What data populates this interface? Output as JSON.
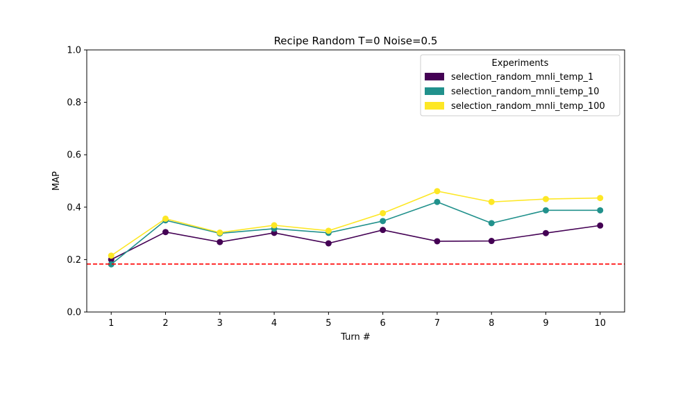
{
  "chart_data": {
    "type": "line",
    "title": "Recipe Random T=0 Noise=0.5",
    "xlabel": "Turn #",
    "ylabel": "MAP",
    "x": [
      1,
      2,
      3,
      4,
      5,
      6,
      7,
      8,
      9,
      10
    ],
    "xticks": [
      "1",
      "2",
      "3",
      "4",
      "5",
      "6",
      "7",
      "8",
      "9",
      "10"
    ],
    "yticks": [
      "0.0",
      "0.2",
      "0.4",
      "0.6",
      "0.8",
      "1.0"
    ],
    "ylim": [
      0,
      1
    ],
    "xlim": [
      0.55,
      10.45
    ],
    "grid": false,
    "legend": {
      "title": "Experiments",
      "placement": "top-right"
    },
    "series": [
      {
        "name": "selection_random_mnli_temp_1",
        "color": "#440154",
        "values": [
          0.2,
          0.305,
          0.267,
          0.302,
          0.262,
          0.313,
          0.27,
          0.271,
          0.301,
          0.33
        ]
      },
      {
        "name": "selection_random_mnli_temp_10",
        "color": "#21918c",
        "values": [
          0.182,
          0.35,
          0.3,
          0.318,
          0.302,
          0.347,
          0.42,
          0.339,
          0.388,
          0.388
        ]
      },
      {
        "name": "selection_random_mnli_temp_100",
        "color": "#fde725",
        "values": [
          0.215,
          0.356,
          0.303,
          0.331,
          0.31,
          0.377,
          0.461,
          0.42,
          0.431,
          0.435
        ]
      }
    ],
    "baseline": {
      "value": 0.183,
      "color": "#ff0000",
      "style": "dashed"
    }
  }
}
